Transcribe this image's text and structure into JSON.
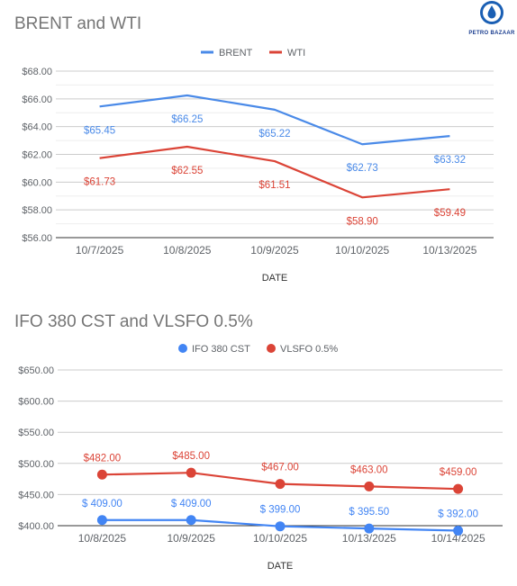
{
  "brand": {
    "name": "PETRO BAZAAR",
    "accent": "#1a5fb4"
  },
  "chart_data": [
    {
      "type": "line",
      "title": "BRENT and WTI",
      "xlabel": "DATE",
      "ylabel": "",
      "categories": [
        "10/7/2025",
        "10/8/2025",
        "10/9/2025",
        "10/10/2025",
        "10/13/2025"
      ],
      "y_ticks": [
        "$56.00",
        "$58.00",
        "$60.00",
        "$62.00",
        "$64.00",
        "$66.00",
        "$68.00"
      ],
      "ylim": [
        56,
        68
      ],
      "legend_position": "top-center",
      "grid": true,
      "series": [
        {
          "name": "BRENT",
          "color": "#4a8ae8",
          "values": [
            65.45,
            66.25,
            65.22,
            62.73,
            63.32
          ],
          "labels": [
            "$65.45",
            "$66.25",
            "$65.22",
            "$62.73",
            "$63.32"
          ]
        },
        {
          "name": "WTI",
          "color": "#db4437",
          "values": [
            61.73,
            62.55,
            61.51,
            58.9,
            59.49
          ],
          "labels": [
            "$61.73",
            "$62.55",
            "$61.51",
            "$58.90",
            "$59.49"
          ]
        }
      ]
    },
    {
      "type": "line",
      "title": "IFO 380 CST and VLSFO 0.5%",
      "xlabel": "DATE",
      "ylabel": "",
      "categories": [
        "10/8/2025",
        "10/9/2025",
        "10/10/2025",
        "10/13/2025",
        "10/14/2025"
      ],
      "y_ticks": [
        "$400.00",
        "$450.00",
        "$500.00",
        "$550.00",
        "$600.00",
        "$650.00"
      ],
      "ylim": [
        400,
        650
      ],
      "legend_position": "top-center",
      "grid": true,
      "series": [
        {
          "name": "IFO 380 CST",
          "color": "#4285f4",
          "values": [
            409.0,
            409.0,
            399.0,
            395.5,
            392.0
          ],
          "labels": [
            "$ 409.00",
            "$ 409.00",
            "$ 399.00",
            "$ 395.50",
            "$ 392.00"
          ]
        },
        {
          "name": "VLSFO 0.5%",
          "color": "#db4437",
          "values": [
            482.0,
            485.0,
            467.0,
            463.0,
            459.0
          ],
          "labels": [
            "$482.00",
            "$485.00",
            "$467.00",
            "$463.00",
            "$459.00"
          ]
        }
      ]
    }
  ]
}
